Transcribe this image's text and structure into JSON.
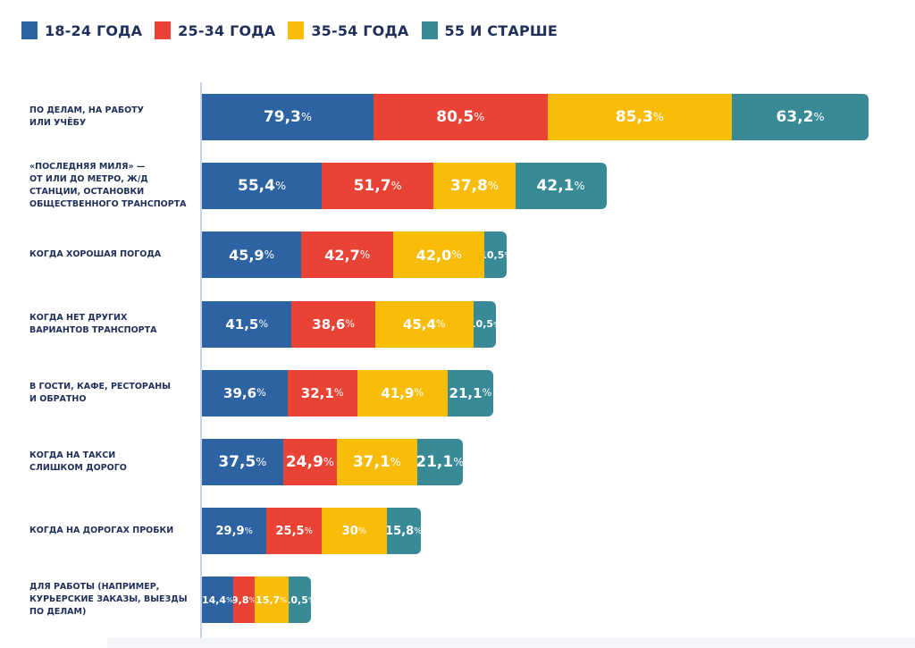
{
  "chart_data": {
    "type": "bar",
    "orientation": "horizontal",
    "stacked": true,
    "title": "",
    "xlabel": "",
    "ylabel": "",
    "legend_position": "top-left",
    "grid": false,
    "unit": "%",
    "categories": [
      "ПО ДЕЛАМ, НА РАБОТУ ИЛИ УЧЁБУ",
      "«ПОСЛЕДНЯЯ МИЛЯ» — ОТ ИЛИ ДО МЕТРО, Ж/Д СТАНЦИИ, ОСТАНОВКИ ОБЩЕСТВЕННОГО ТРАНСПОРТА",
      "КОГДА ХОРОШАЯ ПОГОДА",
      "КОГДА НЕТ ДРУГИХ ВАРИАНТОВ ТРАНСПОРТА",
      "В ГОСТИ, КАФЕ, РЕСТОРАНЫ И ОБРАТНО",
      "КОГДА НА ТАКСИ СЛИШКОМ ДОРОГО",
      "КОГДА НА ДОРОГАХ ПРОБКИ",
      "ДЛЯ РАБОТЫ (НАПРИМЕР, КУРЬЕРСКИЕ ЗАКАЗЫ, ВЫЕЗДЫ ПО ДЕЛАМ)"
    ],
    "category_lines": [
      [
        "ПО ДЕЛАМ, НА РАБОТУ",
        "ИЛИ УЧЁБУ"
      ],
      [
        "«ПОСЛЕДНЯЯ МИЛЯ» —",
        "ОТ ИЛИ ДО МЕТРО, Ж/Д",
        "СТАНЦИИ, ОСТАНОВКИ",
        "ОБЩЕСТВЕННОГО ТРАНСПОРТА"
      ],
      [
        "КОГДА ХОРОШАЯ ПОГОДА"
      ],
      [
        "КОГДА НЕТ ДРУГИХ",
        "ВАРИАНТОВ ТРАНСПОРТА"
      ],
      [
        "В ГОСТИ, КАФЕ, РЕСТОРАНЫ",
        "И ОБРАТНО"
      ],
      [
        "КОГДА НА ТАКСИ",
        "СЛИШКОМ ДОРОГО"
      ],
      [
        "КОГДА НА ДОРОГАХ ПРОБКИ"
      ],
      [
        "ДЛЯ РАБОТЫ (НАПРИМЕР,",
        "КУРЬЕРСКИЕ ЗАКАЗЫ, ВЫЕЗДЫ",
        "ПО ДЕЛАМ)"
      ]
    ],
    "series": [
      {
        "name": "18-24 ГОДА",
        "color": "#2d62a3",
        "values": [
          79.3,
          55.4,
          45.9,
          41.5,
          39.6,
          37.5,
          29.9,
          14.4
        ],
        "labels": [
          "79,3",
          "55,4",
          "45,9",
          "41,5",
          "39,6",
          "37,5",
          "29,9",
          "14,4"
        ]
      },
      {
        "name": "25-34 ГОДА",
        "color": "#e94335",
        "values": [
          80.5,
          51.7,
          42.7,
          38.6,
          32.1,
          24.9,
          25.5,
          9.8
        ],
        "labels": [
          "80,5",
          "51,7",
          "42,7",
          "38,6",
          "32,1",
          "24,9",
          "25,5",
          "9,8"
        ]
      },
      {
        "name": "35-54 ГОДА",
        "color": "#f9bc09",
        "values": [
          85.3,
          37.8,
          42.0,
          45.4,
          41.9,
          37.1,
          30,
          15.7
        ],
        "labels": [
          "85,3",
          "37,8",
          "42,0",
          "45,4",
          "41,9",
          "37,1",
          "30",
          "15,7"
        ]
      },
      {
        "name": "55 И СТАРШЕ",
        "color": "#388a96",
        "values": [
          63.2,
          42.1,
          10.5,
          10.5,
          21.1,
          21.1,
          15.8,
          10.5
        ],
        "labels": [
          "63,2",
          "42,1",
          "10,5",
          "10,5",
          "21,1",
          "21,1",
          "15,8",
          "10,5"
        ]
      }
    ],
    "percent_sign": "%"
  }
}
